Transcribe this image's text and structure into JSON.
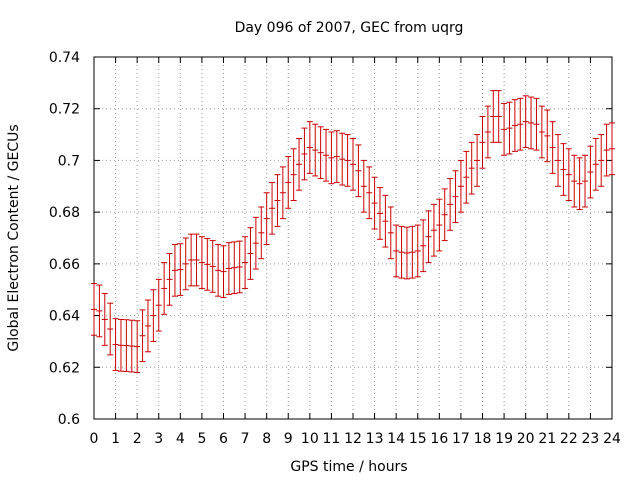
{
  "chart_data": {
    "type": "scatter",
    "title": "Day 096 of 2007, GEC from uqrg",
    "xlabel": "GPS time / hours",
    "ylabel": "Global Electron Content / GECUs",
    "xlim": [
      0,
      24
    ],
    "ylim": [
      0.6,
      0.74
    ],
    "xticks": [
      "0",
      "1",
      "2",
      "3",
      "4",
      "5",
      "6",
      "7",
      "8",
      "9",
      "10",
      "11",
      "12",
      "13",
      "14",
      "15",
      "16",
      "17",
      "18",
      "19",
      "20",
      "21",
      "22",
      "23",
      "24"
    ],
    "yticks": [
      "0.6",
      "0.62",
      "0.64",
      "0.66",
      "0.68",
      "0.7",
      "0.72",
      "0.74"
    ],
    "grid": true,
    "error_bar": 0.01,
    "colors": {
      "series": "#cc0000",
      "grid": "#999999",
      "axis": "#000000"
    },
    "series": [
      {
        "x": [
          0,
          0.25,
          0.5,
          0.75,
          1,
          1.25,
          1.5,
          1.75,
          2,
          2.25,
          2.5,
          2.75,
          3,
          3.25,
          3.5,
          3.75,
          4,
          4.25,
          4.5,
          4.75,
          5,
          5.25,
          5.5,
          5.75,
          6,
          6.25,
          6.5,
          6.75,
          7,
          7.25,
          7.5,
          7.75,
          8,
          8.25,
          8.5,
          8.75,
          9,
          9.25,
          9.5,
          9.75,
          10,
          10.25,
          10.5,
          10.75,
          11,
          11.25,
          11.5,
          11.75,
          12,
          12.25,
          12.5,
          12.75,
          13,
          13.25,
          13.5,
          13.75,
          14,
          14.25,
          14.5,
          14.75,
          15,
          15.25,
          15.5,
          15.75,
          16,
          16.25,
          16.5,
          16.75,
          17,
          17.25,
          17.5,
          17.75,
          18,
          18.25,
          18.5,
          18.75,
          19,
          19.25,
          19.5,
          19.75,
          20,
          20.25,
          20.5,
          20.75,
          21,
          21.25,
          21.5,
          21.75,
          22,
          22.25,
          22.5,
          22.75,
          23,
          23.25,
          23.5,
          23.75,
          24
        ],
        "y": [
          0.6424,
          0.6418,
          0.6385,
          0.6348,
          0.6288,
          0.6285,
          0.6284,
          0.6282,
          0.628,
          0.6322,
          0.636,
          0.64,
          0.644,
          0.6505,
          0.654,
          0.6575,
          0.6578,
          0.66,
          0.6615,
          0.6615,
          0.6605,
          0.6598,
          0.659,
          0.6575,
          0.657,
          0.6582,
          0.6585,
          0.6588,
          0.6605,
          0.664,
          0.668,
          0.672,
          0.6775,
          0.6815,
          0.6845,
          0.6875,
          0.6915,
          0.6945,
          0.6985,
          0.7025,
          0.705,
          0.704,
          0.703,
          0.702,
          0.701,
          0.7015,
          0.7005,
          0.7,
          0.6985,
          0.696,
          0.69,
          0.6875,
          0.6835,
          0.6795,
          0.6765,
          0.672,
          0.665,
          0.6645,
          0.6642,
          0.6645,
          0.665,
          0.667,
          0.6705,
          0.673,
          0.675,
          0.679,
          0.683,
          0.686,
          0.69,
          0.6935,
          0.697,
          0.7,
          0.707,
          0.711,
          0.717,
          0.717,
          0.712,
          0.7125,
          0.7135,
          0.714,
          0.715,
          0.7145,
          0.714,
          0.711,
          0.7095,
          0.705,
          0.7,
          0.6965,
          0.6945,
          0.692,
          0.691,
          0.692,
          0.6955,
          0.6985,
          0.7,
          0.704,
          0.7045
        ]
      }
    ]
  }
}
